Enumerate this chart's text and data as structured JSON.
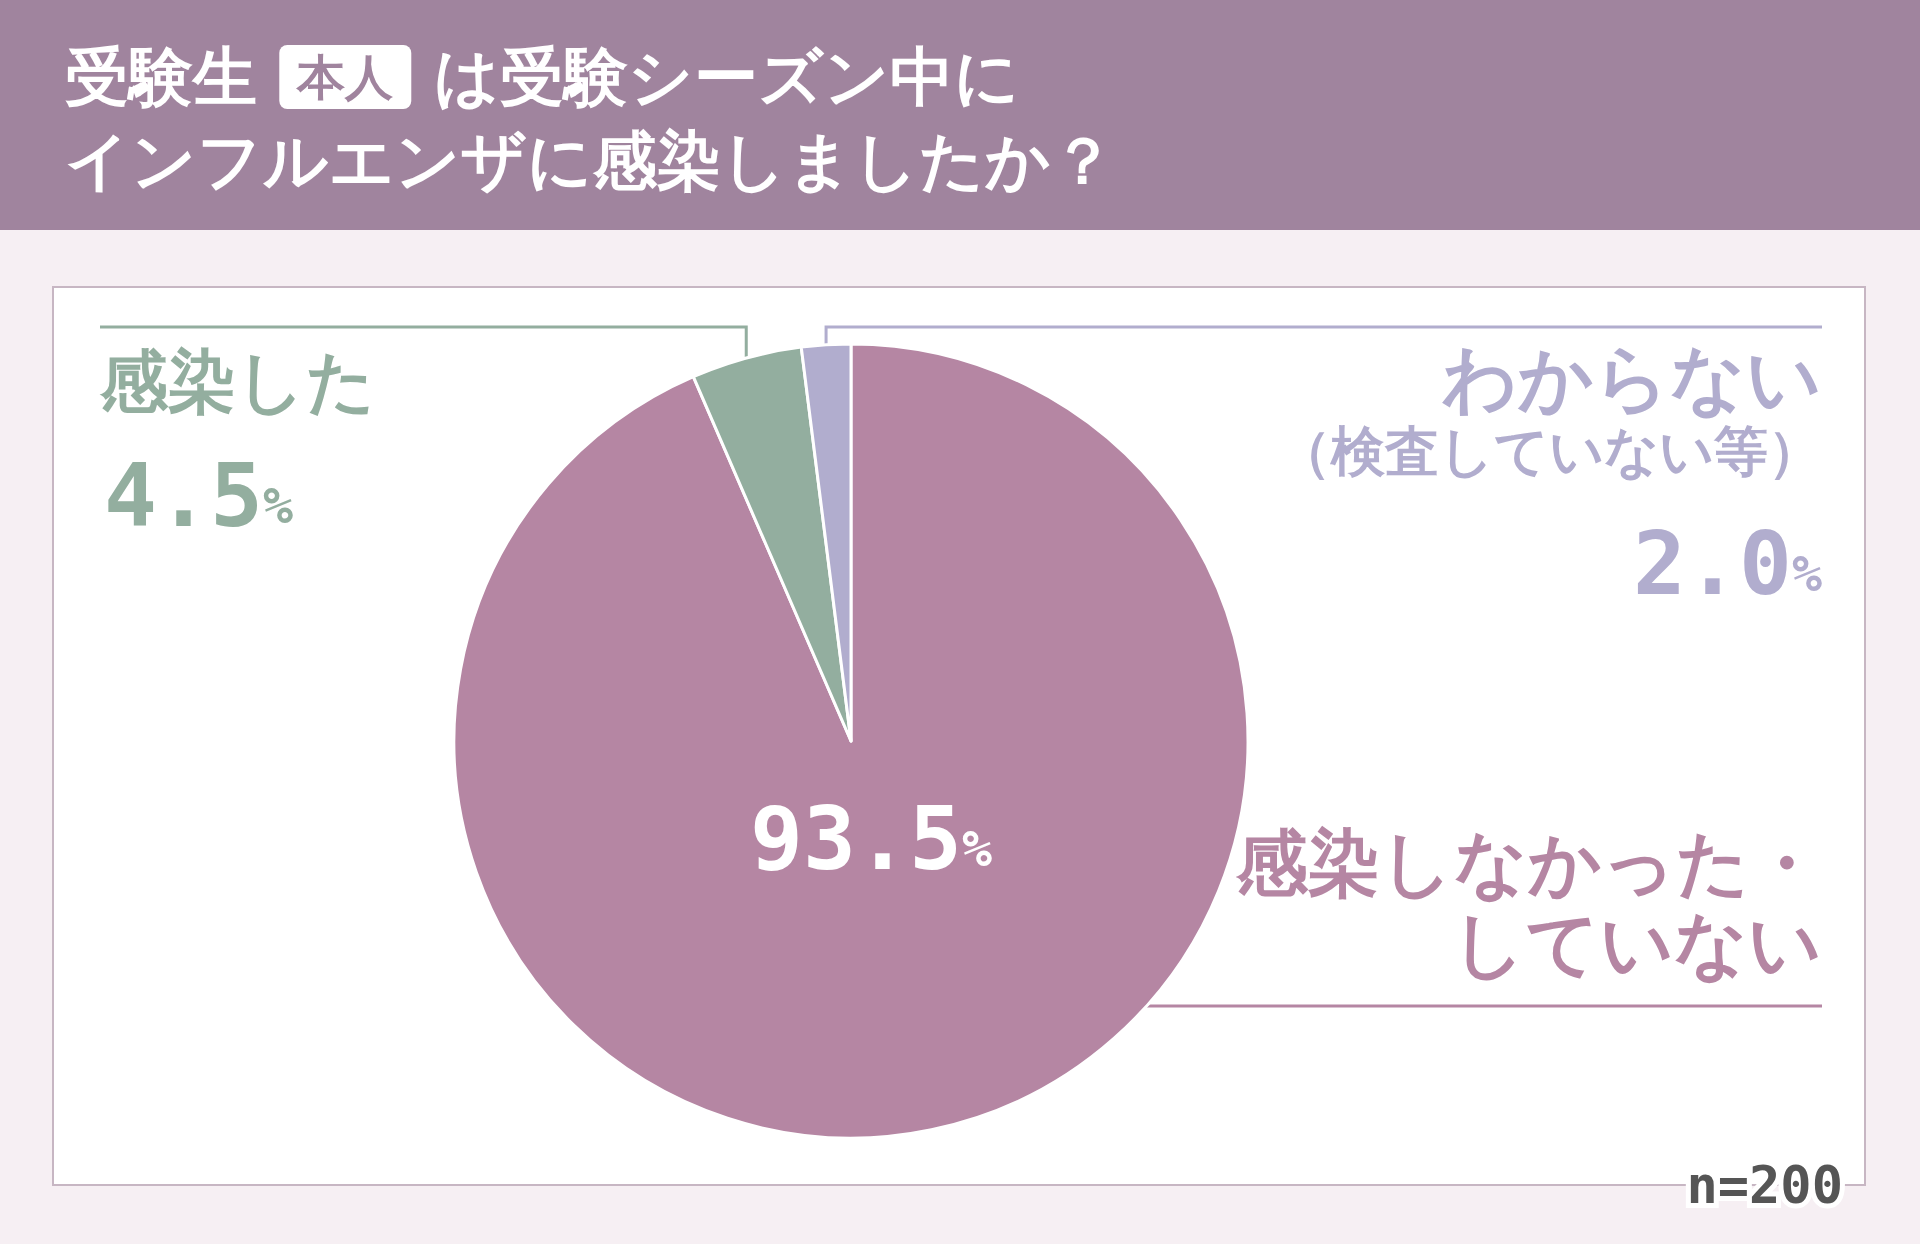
{
  "chart_data": {
    "type": "pie",
    "title": "受験生 本人 は受験シーズン中にインフルエンザに感染しましたか？",
    "categories": [
      "感染しなかった・していない",
      "感染した",
      "わからない（検査していない等）"
    ],
    "values": [
      93.5,
      4.5,
      2.0
    ],
    "colors": [
      "#b586a3",
      "#93ae9f",
      "#b1adce"
    ],
    "value_labels": [
      "93.5%",
      "4.5%",
      "2.0%"
    ],
    "annotations": [
      "n=200"
    ]
  }
}
